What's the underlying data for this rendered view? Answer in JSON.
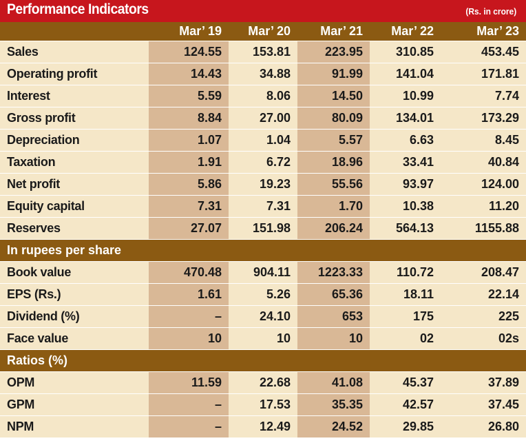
{
  "title": "Performance  Indicators",
  "unit": "(Rs. in crore)",
  "columns": [
    "Mar’ 19",
    "Mar’ 20",
    "Mar’ 21",
    "Mar’ 22",
    "Mar’ 23"
  ],
  "rows1": [
    {
      "label": "Sales",
      "values": [
        "124.55",
        "153.81",
        "223.95",
        "310.85",
        "453.45"
      ]
    },
    {
      "label": "Operating profit",
      "values": [
        "14.43",
        "34.88",
        "91.99",
        "141.04",
        "171.81"
      ]
    },
    {
      "label": "Interest",
      "values": [
        "5.59",
        "8.06",
        "14.50",
        "10.99",
        "7.74"
      ]
    },
    {
      "label": "Gross profit",
      "values": [
        "8.84",
        "27.00",
        "80.09",
        "134.01",
        "173.29"
      ]
    },
    {
      "label": "Depreciation",
      "values": [
        "1.07",
        "1.04",
        "5.57",
        "6.63",
        "8.45"
      ]
    },
    {
      "label": "Taxation",
      "values": [
        "1.91",
        "6.72",
        "18.96",
        "33.41",
        "40.84"
      ]
    },
    {
      "label": "Net profit",
      "values": [
        "5.86",
        "19.23",
        "55.56",
        "93.97",
        "124.00"
      ]
    },
    {
      "label": "Equity capital",
      "values": [
        "7.31",
        "7.31",
        "1.70",
        "10.38",
        "11.20"
      ]
    },
    {
      "label": "Reserves",
      "values": [
        "27.07",
        "151.98",
        "206.24",
        "564.13",
        "1155.88"
      ]
    }
  ],
  "section2": "In rupees per share",
  "rows2": [
    {
      "label": "Book value",
      "values": [
        "470.48",
        "904.11",
        "1223.33",
        "110.72",
        "208.47"
      ]
    },
    {
      "label": "EPS (Rs.)",
      "values": [
        "1.61",
        "5.26",
        "65.36",
        "18.11",
        "22.14"
      ]
    },
    {
      "label": "Dividend (%)",
      "values": [
        "–",
        "24.10",
        "653",
        "175",
        "225"
      ]
    },
    {
      "label": "Face  value",
      "values": [
        "10",
        "10",
        "10",
        "02",
        "02s"
      ]
    }
  ],
  "section3": "Ratios (%)",
  "rows3": [
    {
      "label": "OPM",
      "values": [
        "11.59",
        "22.68",
        "41.08",
        "45.37",
        "37.89"
      ]
    },
    {
      "label": "GPM",
      "values": [
        "–",
        "17.53",
        "35.35",
        "42.57",
        "37.45"
      ]
    },
    {
      "label": "NPM",
      "values": [
        "–",
        "12.49",
        "24.52",
        "29.85",
        "26.80"
      ]
    }
  ],
  "colors": {
    "title_red": "#c7161d",
    "header_brown": "#8b5a12",
    "cream": "#f5e7c8",
    "tan": "#d9b896"
  }
}
